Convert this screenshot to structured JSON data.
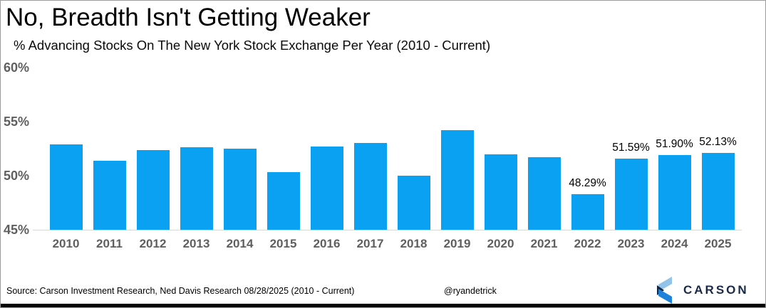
{
  "header": {
    "title": "No, Breadth Isn't Getting Weaker",
    "subtitle": "% Advancing Stocks On The New York Stock Exchange Per Year (2010 - Current)"
  },
  "chart_data": {
    "type": "bar",
    "title": "No, Breadth Isn't Getting Weaker",
    "subtitle": "% Advancing Stocks On The New York Stock Exchange Per Year (2010 - Current)",
    "categories": [
      "2010",
      "2011",
      "2012",
      "2013",
      "2014",
      "2015",
      "2016",
      "2017",
      "2018",
      "2019",
      "2020",
      "2021",
      "2022",
      "2023",
      "2024",
      "2025"
    ],
    "values": [
      52.9,
      51.4,
      52.4,
      52.6,
      52.5,
      50.3,
      52.7,
      53.0,
      50.0,
      54.2,
      52.0,
      51.7,
      48.29,
      51.59,
      51.9,
      52.13
    ],
    "bar_labels": [
      "",
      "",
      "",
      "",
      "",
      "",
      "",
      "",
      "",
      "",
      "",
      "",
      "48.29%",
      "51.59%",
      "51.90%",
      "52.13%"
    ],
    "xlabel": "",
    "ylabel": "",
    "ylim": [
      45,
      60
    ],
    "yticks": [
      {
        "value": 60,
        "label": "60%"
      },
      {
        "value": 55,
        "label": "55%"
      },
      {
        "value": 50,
        "label": "50%"
      },
      {
        "value": 45,
        "label": "45%"
      }
    ],
    "grid": false,
    "legend": false,
    "bar_color": "#0aa1f3",
    "axis_text_color": "#5f5f5f"
  },
  "footer": {
    "source": "Source: Carson Investment Research, Ned Davis Research 08/28/2025 (2010 - Current)",
    "handle": "@ryandetrick"
  },
  "logo": {
    "text": "CARSON",
    "text_color": "#1b2949",
    "icon_colors": {
      "light_blue": "#92c4ea",
      "navy": "#17253f",
      "blue": "#1e82db"
    }
  }
}
